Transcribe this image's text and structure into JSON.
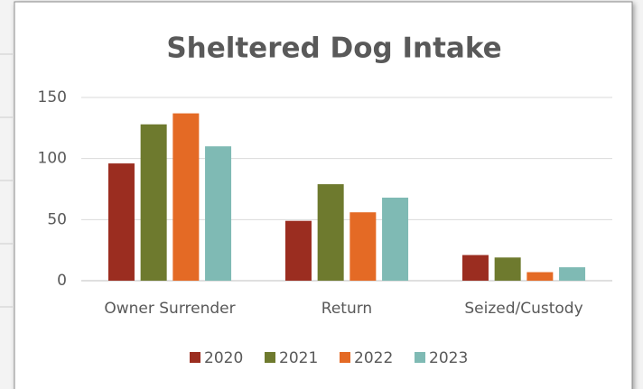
{
  "chart_data": {
    "type": "bar",
    "title": "Sheltered Dog Intake",
    "categories": [
      "Owner Surrender",
      "Return",
      "Seized/Custody"
    ],
    "series": [
      {
        "name": "2020",
        "color": "#9b2d20",
        "values": [
          96,
          49,
          21
        ]
      },
      {
        "name": "2021",
        "color": "#6e7a2e",
        "values": [
          128,
          79,
          19
        ]
      },
      {
        "name": "2022",
        "color": "#e46a25",
        "values": [
          137,
          56,
          7
        ]
      },
      {
        "name": "2023",
        "color": "#7fbab4",
        "values": [
          110,
          68,
          11
        ]
      }
    ],
    "ylim": [
      0,
      150
    ],
    "yticks": [
      0,
      50,
      100,
      150
    ],
    "grid": true,
    "legend": "bottom"
  }
}
